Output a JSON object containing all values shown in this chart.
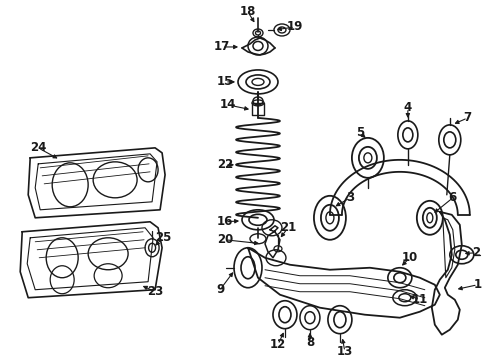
{
  "bg_color": "#ffffff",
  "line_color": "#1a1a1a",
  "fig_width": 4.89,
  "fig_height": 3.6,
  "dpi": 100,
  "font_size": 8.5,
  "lw": 0.9
}
